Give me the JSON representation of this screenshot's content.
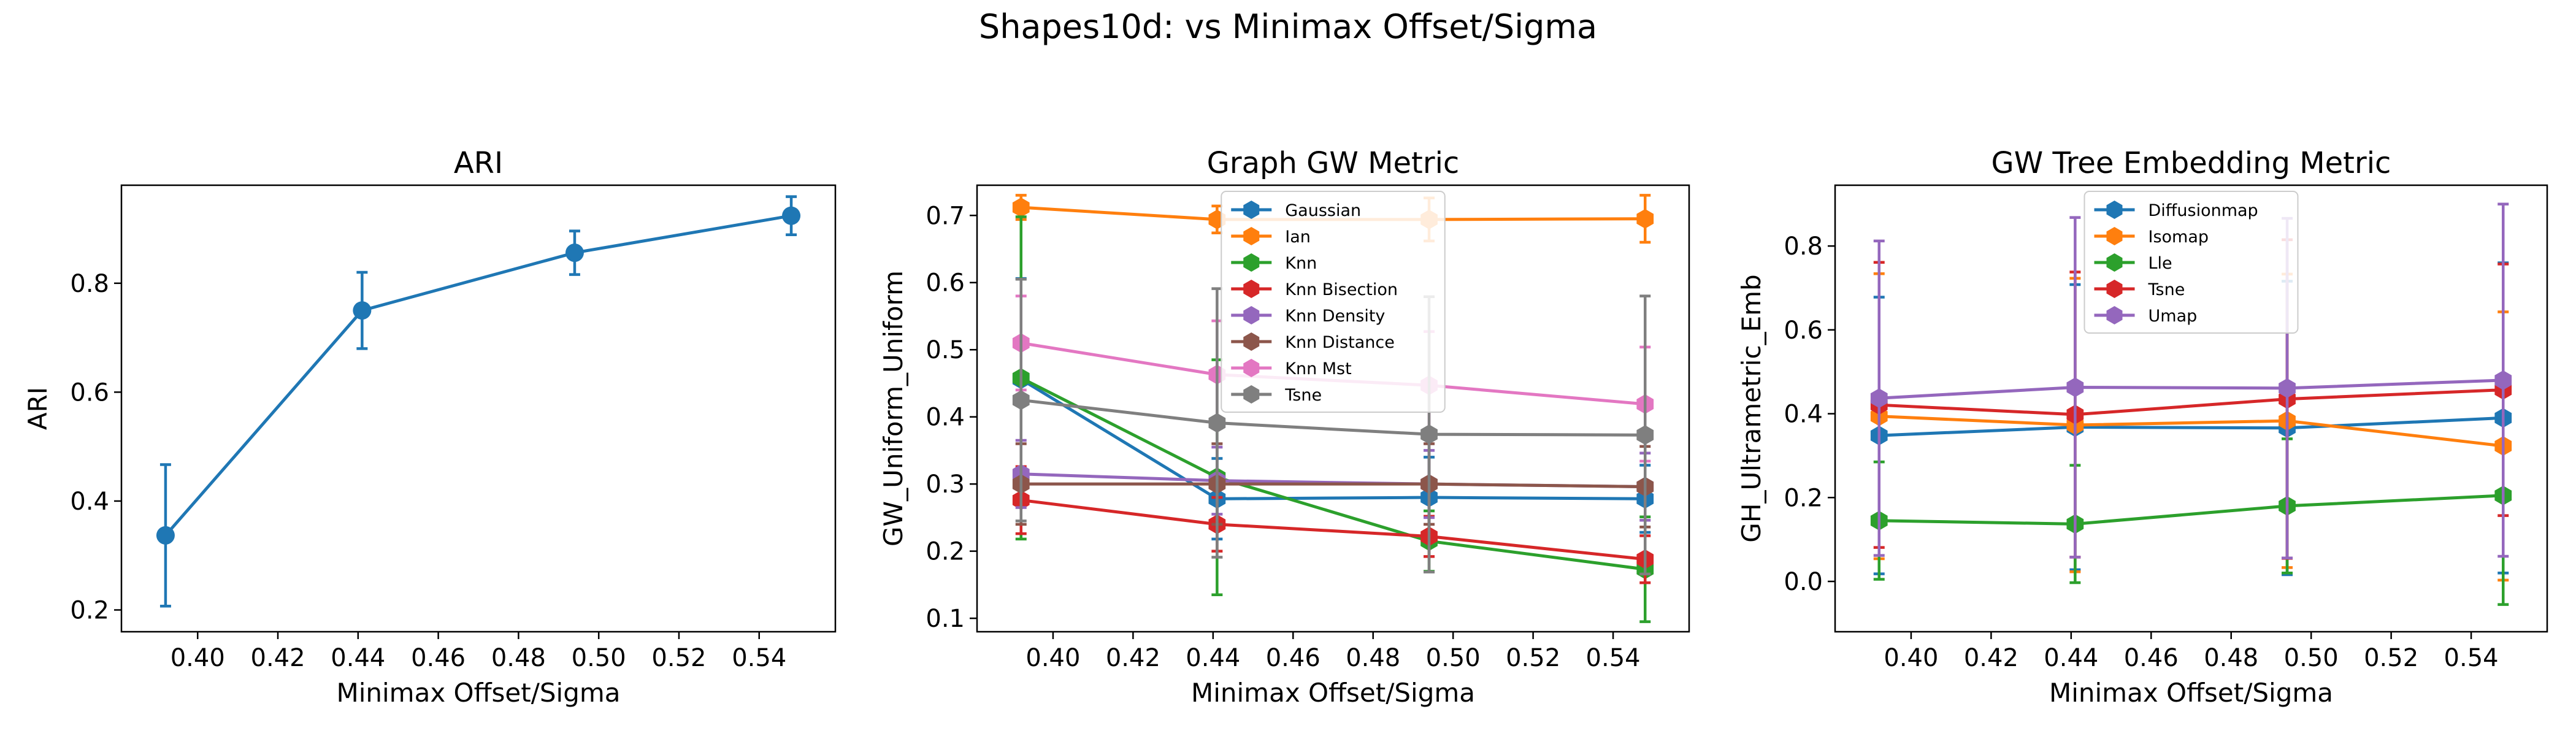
{
  "figure": {
    "suptitle": "Shapes10d: vs Minimax Offset/Sigma"
  },
  "chart_data": [
    {
      "type": "line",
      "title": "ARI",
      "xlabel": "Minimax Offset/Sigma",
      "ylabel": "ARI",
      "xlim": [
        0.381,
        0.559
      ],
      "ylim": [
        0.16,
        0.98
      ],
      "xticks": [
        0.4,
        0.42,
        0.44,
        0.46,
        0.48,
        0.5,
        0.52,
        0.54
      ],
      "xtick_labels": [
        "0.40",
        "0.42",
        "0.44",
        "0.46",
        "0.48",
        "0.50",
        "0.52",
        "0.54"
      ],
      "yticks": [
        0.2,
        0.4,
        0.6,
        0.8
      ],
      "ytick_labels": [
        "0.2",
        "0.4",
        "0.6",
        "0.8"
      ],
      "x": [
        0.392,
        0.441,
        0.494,
        0.548
      ],
      "series": [
        {
          "name": "",
          "color": "#1f77b4",
          "values": [
            0.337,
            0.75,
            0.856,
            0.924
          ],
          "err": [
            0.13,
            0.07,
            0.04,
            0.035
          ]
        }
      ],
      "legend": null
    },
    {
      "type": "line",
      "title": "Graph GW Metric",
      "xlabel": "Minimax Offset/Sigma",
      "ylabel": "GW_Uniform_Uniform",
      "xlim": [
        0.381,
        0.559
      ],
      "ylim": [
        0.08,
        0.745
      ],
      "xticks": [
        0.4,
        0.42,
        0.44,
        0.46,
        0.48,
        0.5,
        0.52,
        0.54
      ],
      "xtick_labels": [
        "0.40",
        "0.42",
        "0.44",
        "0.46",
        "0.48",
        "0.50",
        "0.52",
        "0.54"
      ],
      "yticks": [
        0.1,
        0.2,
        0.3,
        0.4,
        0.5,
        0.6,
        0.7
      ],
      "ytick_labels": [
        "0.1",
        "0.2",
        "0.3",
        "0.4",
        "0.5",
        "0.6",
        "0.7"
      ],
      "x": [
        0.392,
        0.441,
        0.494,
        0.548
      ],
      "series": [
        {
          "name": "Gaussian",
          "color": "#1f77b4",
          "values": [
            0.456,
            0.278,
            0.28,
            0.278
          ],
          "err": [
            0.15,
            0.06,
            0.06,
            0.05
          ]
        },
        {
          "name": "Ian",
          "color": "#ff7f0e",
          "values": [
            0.712,
            0.694,
            0.694,
            0.695
          ],
          "err": [
            0.018,
            0.02,
            0.032,
            0.035
          ]
        },
        {
          "name": "Knn",
          "color": "#2ca02c",
          "values": [
            0.458,
            0.31,
            0.215,
            0.173
          ],
          "err": [
            0.24,
            0.175,
            0.045,
            0.078
          ]
        },
        {
          "name": "Knn Bisection",
          "color": "#d62728",
          "values": [
            0.276,
            0.24,
            0.222,
            0.188
          ],
          "err": [
            0.05,
            0.04,
            0.03,
            0.035
          ]
        },
        {
          "name": "Knn Density",
          "color": "#9467bd",
          "values": [
            0.315,
            0.305,
            0.3,
            0.296
          ],
          "err": [
            0.05,
            0.05,
            0.05,
            0.05
          ]
        },
        {
          "name": "Knn Distance",
          "color": "#8c564b",
          "values": [
            0.3,
            0.3,
            0.3,
            0.296
          ],
          "err": [
            0.06,
            0.06,
            0.06,
            0.06
          ]
        },
        {
          "name": "Knn Mst",
          "color": "#e377c2",
          "values": [
            0.51,
            0.463,
            0.447,
            0.419
          ],
          "err": [
            0.07,
            0.08,
            0.08,
            0.085
          ]
        },
        {
          "name": "Tsne",
          "color": "#7f7f7f",
          "values": [
            0.425,
            0.391,
            0.374,
            0.373
          ],
          "err": [
            0.18,
            0.2,
            0.205,
            0.207
          ]
        }
      ],
      "legend": "upper-center"
    },
    {
      "type": "line",
      "title": "GW Tree Embedding Metric",
      "xlabel": "Minimax Offset/Sigma",
      "ylabel": "GH_Ultrametric_Emb",
      "xlim": [
        0.381,
        0.559
      ],
      "ylim": [
        -0.12,
        0.945
      ],
      "xticks": [
        0.4,
        0.42,
        0.44,
        0.46,
        0.48,
        0.5,
        0.52,
        0.54
      ],
      "xtick_labels": [
        "0.40",
        "0.42",
        "0.44",
        "0.46",
        "0.48",
        "0.50",
        "0.52",
        "0.54"
      ],
      "yticks": [
        0.0,
        0.2,
        0.4,
        0.6,
        0.8
      ],
      "ytick_labels": [
        "0.0",
        "0.2",
        "0.4",
        "0.6",
        "0.8"
      ],
      "x": [
        0.392,
        0.441,
        0.494,
        0.548
      ],
      "series": [
        {
          "name": "Diffusionmap",
          "color": "#1f77b4",
          "values": [
            0.348,
            0.368,
            0.366,
            0.39
          ],
          "err": [
            0.33,
            0.34,
            0.35,
            0.37
          ]
        },
        {
          "name": "Isomap",
          "color": "#ff7f0e",
          "values": [
            0.394,
            0.373,
            0.383,
            0.323
          ],
          "err": [
            0.34,
            0.35,
            0.35,
            0.32
          ]
        },
        {
          "name": "Lle",
          "color": "#2ca02c",
          "values": [
            0.145,
            0.137,
            0.18,
            0.205
          ],
          "err": [
            0.14,
            0.14,
            0.16,
            0.26
          ]
        },
        {
          "name": "Tsne",
          "color": "#d62728",
          "values": [
            0.421,
            0.398,
            0.435,
            0.457
          ],
          "err": [
            0.34,
            0.34,
            0.38,
            0.3
          ]
        },
        {
          "name": "Umap",
          "color": "#9467bd",
          "values": [
            0.437,
            0.463,
            0.461,
            0.48
          ],
          "err": [
            0.375,
            0.405,
            0.405,
            0.42
          ]
        }
      ],
      "legend": "upper-center"
    }
  ]
}
